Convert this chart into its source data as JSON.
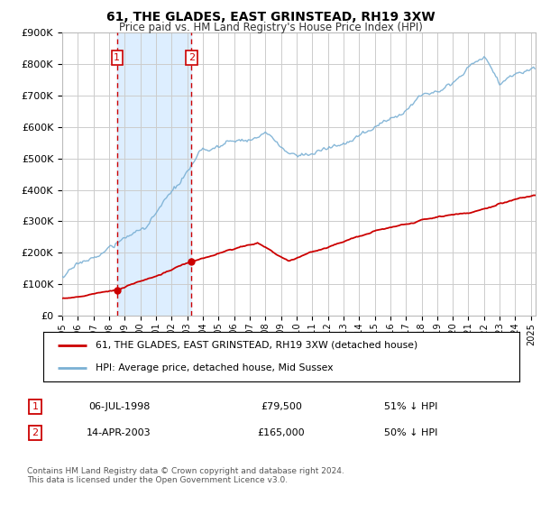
{
  "title": "61, THE GLADES, EAST GRINSTEAD, RH19 3XW",
  "subtitle": "Price paid vs. HM Land Registry's House Price Index (HPI)",
  "ylabel_ticks": [
    "£0",
    "£100K",
    "£200K",
    "£300K",
    "£400K",
    "£500K",
    "£600K",
    "£700K",
    "£800K",
    "£900K"
  ],
  "ylim": [
    0,
    900000
  ],
  "xlim_start": 1995.0,
  "xlim_end": 2025.3,
  "transaction1": {
    "date_label": "06-JUL-1998",
    "year": 1998.51,
    "price": 79500,
    "note": "51% ↓ HPI"
  },
  "transaction2": {
    "date_label": "14-APR-2003",
    "year": 2003.28,
    "price": 165000,
    "note": "50% ↓ HPI"
  },
  "legend_line1": "61, THE GLADES, EAST GRINSTEAD, RH19 3XW (detached house)",
  "legend_line2": "HPI: Average price, detached house, Mid Sussex",
  "footer": "Contains HM Land Registry data © Crown copyright and database right 2024.\nThis data is licensed under the Open Government Licence v3.0.",
  "red_color": "#cc0000",
  "blue_color": "#7ab0d4",
  "shade_color": "#ddeeff",
  "marker_box_color": "#cc0000",
  "background_color": "#ffffff",
  "grid_color": "#cccccc"
}
